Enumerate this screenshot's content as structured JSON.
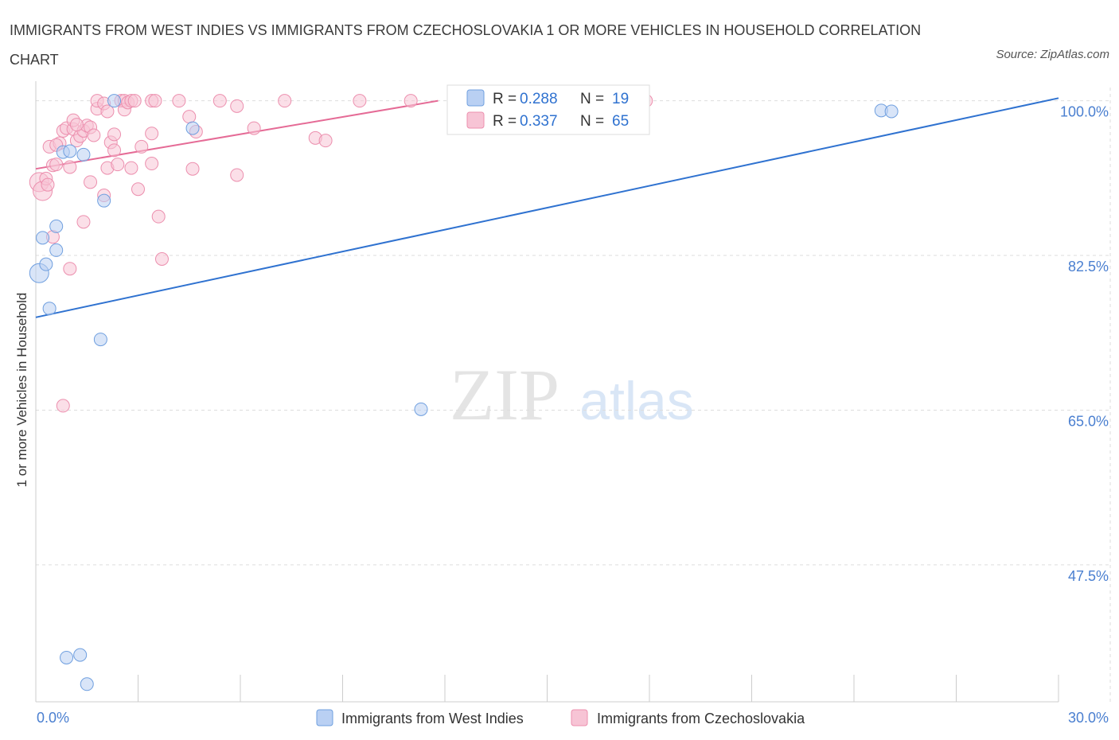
{
  "header": {
    "title": "IMMIGRANTS FROM WEST INDIES VS IMMIGRANTS FROM CZECHOSLOVAKIA 1 OR MORE VEHICLES IN HOUSEHOLD CORRELATION CHART",
    "source": "Source: ZipAtlas.com"
  },
  "watermark": {
    "zip": "ZIP",
    "atlas": "atlas"
  },
  "colors": {
    "blue": "#6f9fdf",
    "blue_fill": "#b9d0f3",
    "blue_line": "#2f72d0",
    "pink": "#ec8fae",
    "pink_fill": "#f7c4d5",
    "pink_line": "#e56b96",
    "tick_label": "#4a7fd0",
    "grid": "#dddddd"
  },
  "legend": {
    "r_label": "R =",
    "n_label": "N =",
    "rows": [
      {
        "r": "0.288",
        "n": "19",
        "color": "blue"
      },
      {
        "r": "0.337",
        "n": "65",
        "color": "pink"
      }
    ]
  },
  "chart_data": {
    "type": "scatter",
    "ylabel": "1 or more Vehicles in Household",
    "xlim": [
      0,
      30
    ],
    "ylim": [
      32,
      101.5
    ],
    "x_tick_labels": [
      "0.0%",
      "30.0%"
    ],
    "y_ticks": [
      {
        "value": 100,
        "label": "100.0%"
      },
      {
        "value": 82.5,
        "label": "82.5%"
      },
      {
        "value": 65,
        "label": "65.0%"
      },
      {
        "value": 47.5,
        "label": "47.5%"
      }
    ],
    "grid": true,
    "legend_position": "bottom",
    "series": [
      {
        "name": "Immigrants from West Indies",
        "color": "blue",
        "trend": {
          "x": [
            0,
            30
          ],
          "y": [
            75.5,
            100.3
          ]
        },
        "points": [
          {
            "x": 0.1,
            "y": 80.5,
            "big": true
          },
          {
            "x": 0.2,
            "y": 84.5
          },
          {
            "x": 0.3,
            "y": 81.5
          },
          {
            "x": 0.4,
            "y": 76.5
          },
          {
            "x": 0.6,
            "y": 85.8
          },
          {
            "x": 0.6,
            "y": 83.1
          },
          {
            "x": 0.8,
            "y": 94.2
          },
          {
            "x": 1.0,
            "y": 94.3
          },
          {
            "x": 1.4,
            "y": 93.9
          },
          {
            "x": 1.9,
            "y": 73.0
          },
          {
            "x": 2.0,
            "y": 88.7
          },
          {
            "x": 2.3,
            "y": 100.0
          },
          {
            "x": 4.6,
            "y": 96.9
          },
          {
            "x": 11.3,
            "y": 65.1
          },
          {
            "x": 0.9,
            "y": 37.0
          },
          {
            "x": 1.3,
            "y": 37.3
          },
          {
            "x": 1.5,
            "y": 34.0
          },
          {
            "x": 24.8,
            "y": 98.9
          },
          {
            "x": 25.1,
            "y": 98.8
          }
        ]
      },
      {
        "name": "Immigrants from Czechoslovakia",
        "color": "pink",
        "trend": {
          "x": [
            0,
            11.8
          ],
          "y": [
            92.3,
            100.0
          ]
        },
        "points": [
          {
            "x": 0.1,
            "y": 90.8,
            "big": true
          },
          {
            "x": 0.2,
            "y": 89.8,
            "big": true
          },
          {
            "x": 0.3,
            "y": 91.2
          },
          {
            "x": 0.35,
            "y": 90.5
          },
          {
            "x": 0.4,
            "y": 94.8
          },
          {
            "x": 0.5,
            "y": 92.7
          },
          {
            "x": 0.5,
            "y": 84.6
          },
          {
            "x": 0.6,
            "y": 92.8
          },
          {
            "x": 0.7,
            "y": 95.2
          },
          {
            "x": 0.8,
            "y": 96.6
          },
          {
            "x": 0.8,
            "y": 65.5
          },
          {
            "x": 0.9,
            "y": 96.9
          },
          {
            "x": 1.0,
            "y": 92.5
          },
          {
            "x": 1.0,
            "y": 81.0
          },
          {
            "x": 1.1,
            "y": 96.8
          },
          {
            "x": 1.1,
            "y": 97.8
          },
          {
            "x": 1.2,
            "y": 95.5
          },
          {
            "x": 1.3,
            "y": 96.0
          },
          {
            "x": 1.4,
            "y": 96.6
          },
          {
            "x": 1.4,
            "y": 86.3
          },
          {
            "x": 1.5,
            "y": 97.2
          },
          {
            "x": 1.6,
            "y": 97.0
          },
          {
            "x": 1.6,
            "y": 90.8
          },
          {
            "x": 1.7,
            "y": 96.1
          },
          {
            "x": 1.8,
            "y": 99.1
          },
          {
            "x": 1.8,
            "y": 100.0
          },
          {
            "x": 2.0,
            "y": 99.7
          },
          {
            "x": 2.0,
            "y": 89.3
          },
          {
            "x": 2.1,
            "y": 98.8
          },
          {
            "x": 2.1,
            "y": 92.4
          },
          {
            "x": 2.2,
            "y": 95.3
          },
          {
            "x": 2.3,
            "y": 94.4
          },
          {
            "x": 2.4,
            "y": 92.8
          },
          {
            "x": 2.5,
            "y": 100.0
          },
          {
            "x": 2.6,
            "y": 100.0
          },
          {
            "x": 2.6,
            "y": 99.0
          },
          {
            "x": 2.7,
            "y": 99.8
          },
          {
            "x": 2.8,
            "y": 100.0
          },
          {
            "x": 2.8,
            "y": 92.4
          },
          {
            "x": 2.9,
            "y": 100.0
          },
          {
            "x": 3.0,
            "y": 90.0
          },
          {
            "x": 3.1,
            "y": 94.8
          },
          {
            "x": 3.4,
            "y": 100.0
          },
          {
            "x": 3.4,
            "y": 96.3
          },
          {
            "x": 3.4,
            "y": 92.9
          },
          {
            "x": 3.5,
            "y": 100.0
          },
          {
            "x": 3.6,
            "y": 86.9
          },
          {
            "x": 3.7,
            "y": 82.1
          },
          {
            "x": 4.2,
            "y": 100.0
          },
          {
            "x": 4.5,
            "y": 98.2
          },
          {
            "x": 4.6,
            "y": 92.3
          },
          {
            "x": 4.7,
            "y": 96.5
          },
          {
            "x": 5.4,
            "y": 100.0
          },
          {
            "x": 5.9,
            "y": 91.6
          },
          {
            "x": 5.9,
            "y": 99.4
          },
          {
            "x": 6.4,
            "y": 96.9
          },
          {
            "x": 7.3,
            "y": 100.0
          },
          {
            "x": 8.2,
            "y": 95.8
          },
          {
            "x": 8.5,
            "y": 95.5
          },
          {
            "x": 9.5,
            "y": 100.0
          },
          {
            "x": 11.0,
            "y": 100.0
          },
          {
            "x": 17.9,
            "y": 100.0
          },
          {
            "x": 2.3,
            "y": 96.2
          },
          {
            "x": 1.2,
            "y": 97.3
          },
          {
            "x": 0.6,
            "y": 95.0
          }
        ]
      }
    ]
  }
}
